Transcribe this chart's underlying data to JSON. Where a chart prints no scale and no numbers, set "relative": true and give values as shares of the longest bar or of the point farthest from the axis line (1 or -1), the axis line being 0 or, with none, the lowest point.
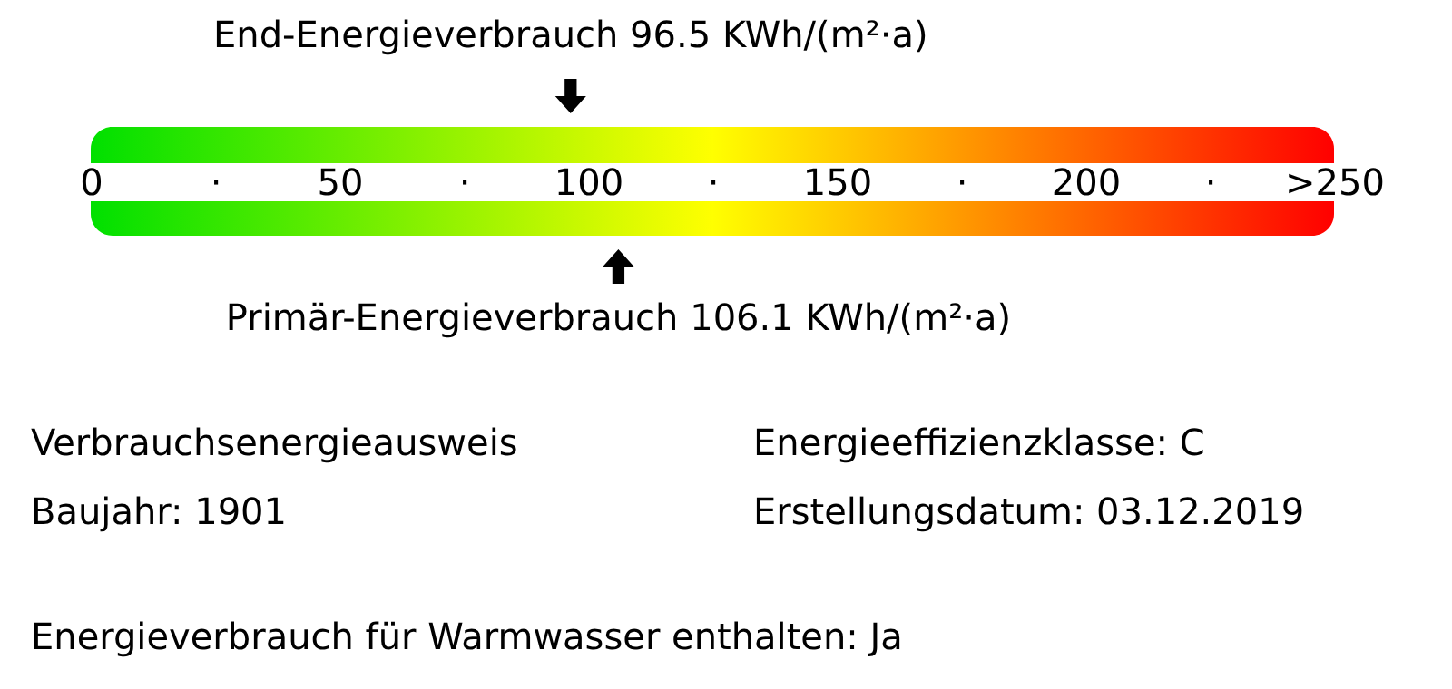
{
  "chart_data": {
    "type": "scatter",
    "relative": true,
    "x": [
      96.5,
      106.1
    ],
    "values": [
      1,
      0
    ],
    "xlim": [
      0,
      250
    ],
    "xticks": [
      0,
      {
        "value": 25,
        "label": "·"
      },
      50,
      {
        "value": 75,
        "label": "·"
      },
      100,
      {
        "value": 125,
        "label": "·"
      },
      150,
      {
        "value": 175,
        "label": "·"
      },
      200,
      {
        "value": 225,
        "label": "·"
      },
      {
        "value": 250,
        "label": ">250"
      }
    ],
    "colors": [
      "#000000",
      "#000000"
    ],
    "bands": [
      {
        "axis": "x",
        "from": 0,
        "to": 100,
        "color": "#00e000"
      },
      {
        "axis": "x",
        "from": 100,
        "to": 150,
        "color": "#ffff00"
      },
      {
        "axis": "x",
        "from": 150,
        "to": 250,
        "color": "#ff0000"
      }
    ],
    "annotations": [
      {
        "text": "End-Energieverbrauch 96.5 KWh/(m²·a)",
        "x": 96.5,
        "y": 1
      },
      {
        "text": "Primär-Energieverbrauch 106.1 KWh/(m²·a)",
        "x": 106.1,
        "y": 0
      },
      "Verbrauchsenergieausweis",
      "Energieeffizienzklasse: C",
      "Baujahr: 1901",
      "Erstellungsdatum: 03.12.2019",
      "Energieverbrauch für Warmwasser enthalten: Ja"
    ]
  }
}
